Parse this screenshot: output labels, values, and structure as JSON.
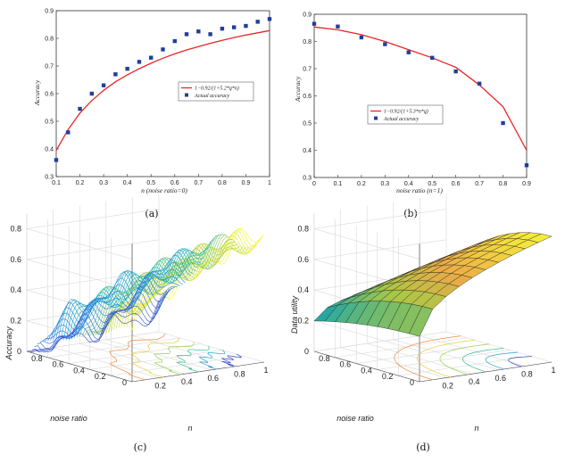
{
  "chart_data": [
    {
      "type": "line",
      "panel_label": "(a)",
      "xlabel": "n (noise ratio=0)",
      "ylabel": "Accuracy",
      "xlim": [
        0.1,
        1
      ],
      "ylim": [
        0.3,
        0.9
      ],
      "x_ticks": [
        "0.1",
        "0.2",
        "0.3",
        "0.4",
        "0.5",
        "0.6",
        "0.7",
        "0.8",
        "0.9",
        "1"
      ],
      "y_ticks": [
        "0.3",
        "0.4",
        "0.5",
        "0.6",
        "0.7",
        "0.8",
        "0.9"
      ],
      "legend": {
        "fit": "1−0.92/(1+5.2*q*n)",
        "points": "Actual accuracy",
        "placement": "center-right"
      },
      "fit_curve": {
        "x": [
          0.1,
          0.15,
          0.2,
          0.25,
          0.3,
          0.35,
          0.4,
          0.45,
          0.5,
          0.55,
          0.6,
          0.65,
          0.7,
          0.75,
          0.8,
          0.85,
          0.9,
          0.95,
          1.0
        ],
        "y": [
          0.395,
          0.47,
          0.53,
          0.575,
          0.612,
          0.643,
          0.668,
          0.69,
          0.71,
          0.728,
          0.744,
          0.758,
          0.77,
          0.782,
          0.793,
          0.803,
          0.812,
          0.82,
          0.828
        ]
      },
      "series": [
        {
          "name": "Actual accuracy",
          "x": [
            0.1,
            0.15,
            0.2,
            0.25,
            0.3,
            0.35,
            0.4,
            0.45,
            0.5,
            0.55,
            0.6,
            0.65,
            0.7,
            0.75,
            0.8,
            0.85,
            0.9,
            0.95,
            1.0
          ],
          "y": [
            0.36,
            0.46,
            0.545,
            0.6,
            0.63,
            0.67,
            0.69,
            0.715,
            0.73,
            0.76,
            0.79,
            0.815,
            0.825,
            0.815,
            0.835,
            0.84,
            0.845,
            0.86,
            0.87
          ]
        }
      ],
      "colors": {
        "fit": "#e8262a",
        "points": "#1f3f9a"
      }
    },
    {
      "type": "line",
      "panel_label": "(b)",
      "xlabel": "noise ratio (n=1)",
      "ylabel": "Accuracy",
      "xlim": [
        0,
        0.9
      ],
      "ylim": [
        0.3,
        0.9
      ],
      "x_ticks": [
        "0",
        "0.1",
        "0.2",
        "0.3",
        "0.4",
        "0.5",
        "0.6",
        "0.7",
        "0.8",
        "0.9"
      ],
      "y_ticks": [
        "0.3",
        "0.4",
        "0.5",
        "0.6",
        "0.7",
        "0.8",
        "0.9"
      ],
      "legend": {
        "fit": "1−0.92/(1+5.3*n*q)",
        "points": "Actual accuracy",
        "placement": "center-left"
      },
      "fit_curve": {
        "x": [
          0,
          0.1,
          0.2,
          0.3,
          0.4,
          0.5,
          0.6,
          0.7,
          0.8,
          0.9
        ],
        "y": [
          0.853,
          0.843,
          0.825,
          0.8,
          0.77,
          0.74,
          0.705,
          0.64,
          0.56,
          0.4
        ]
      },
      "series": [
        {
          "name": "Actual accuracy",
          "x": [
            0,
            0.1,
            0.2,
            0.3,
            0.4,
            0.5,
            0.6,
            0.7,
            0.8,
            0.9
          ],
          "y": [
            0.865,
            0.855,
            0.815,
            0.79,
            0.76,
            0.74,
            0.69,
            0.645,
            0.5,
            0.345
          ]
        }
      ],
      "colors": {
        "fit": "#e8262a",
        "points": "#1f3f9a"
      }
    },
    {
      "type": "surface",
      "panel_label": "(c)",
      "zlabel": "Accuracy",
      "xlabel": "n",
      "ylabel": "noise ratio",
      "z_ticks": [
        "0",
        "0.2",
        "0.4",
        "0.6",
        "0.8"
      ],
      "x_ticks": [
        "0.2",
        "0.4",
        "0.6",
        "0.8",
        "1"
      ],
      "y_ticks": [
        "0",
        "0.2",
        "0.4",
        "0.6",
        "0.8"
      ],
      "style": "mesh with contour projection"
    },
    {
      "type": "surface",
      "panel_label": "(d)",
      "zlabel": "Data utility",
      "xlabel": "n",
      "ylabel": "noise ratio",
      "z_ticks": [
        "0",
        "0.2",
        "0.4",
        "0.6",
        "0.8"
      ],
      "x_ticks": [
        "0.2",
        "0.4",
        "0.6",
        "0.8",
        "1"
      ],
      "y_ticks": [
        "0",
        "0.2",
        "0.4",
        "0.6",
        "0.8"
      ],
      "style": "faceted surface with contour projection"
    }
  ]
}
